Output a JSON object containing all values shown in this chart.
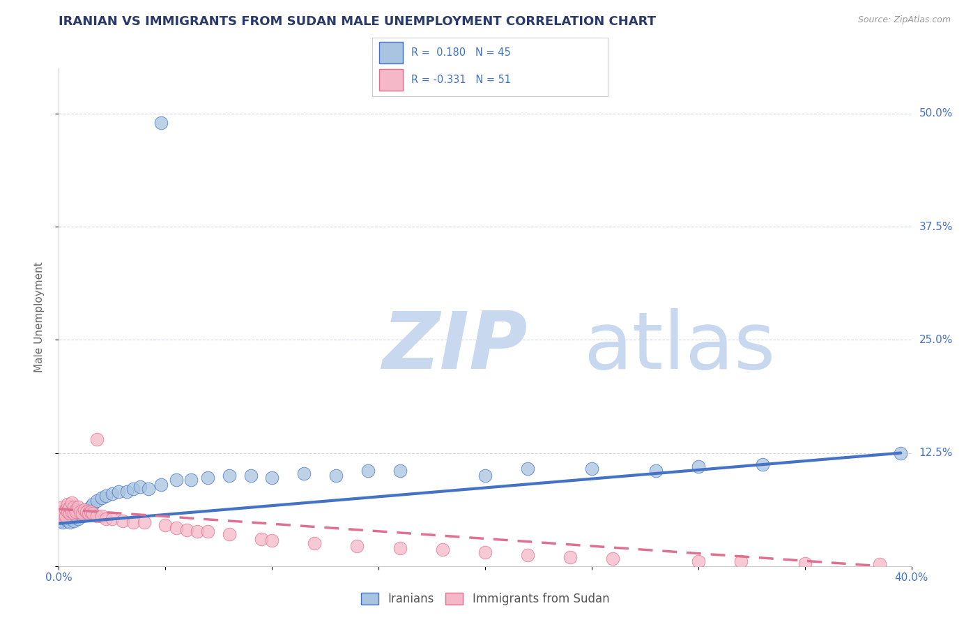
{
  "title": "IRANIAN VS IMMIGRANTS FROM SUDAN MALE UNEMPLOYMENT CORRELATION CHART",
  "source_text": "Source: ZipAtlas.com",
  "ylabel": "Male Unemployment",
  "xlim": [
    0.0,
    0.4
  ],
  "ylim": [
    0.0,
    0.55
  ],
  "yticks": [
    0.0,
    0.125,
    0.25,
    0.375,
    0.5
  ],
  "ytick_labels": [
    "",
    "12.5%",
    "25.0%",
    "37.5%",
    "50.0%"
  ],
  "xticks": [
    0.0,
    0.05,
    0.1,
    0.15,
    0.2,
    0.25,
    0.3,
    0.35,
    0.4
  ],
  "xtick_labels": [
    "0.0%",
    "",
    "",
    "",
    "",
    "",
    "",
    "",
    "40.0%"
  ],
  "color_iranian": "#a8c4e0",
  "color_sudan": "#f4b8c8",
  "color_trend_iranian": "#4472c4",
  "color_trend_sudan": "#e07090",
  "watermark_zip": "ZIP",
  "watermark_atlas": "atlas",
  "watermark_color_zip": "#c8d8ee",
  "watermark_color_atlas": "#c8d8ee",
  "iranians_x": [
    0.001,
    0.002,
    0.003,
    0.003,
    0.004,
    0.004,
    0.005,
    0.005,
    0.006,
    0.007,
    0.008,
    0.009,
    0.01,
    0.011,
    0.012,
    0.013,
    0.015,
    0.016,
    0.018,
    0.02,
    0.022,
    0.025,
    0.028,
    0.032,
    0.035,
    0.038,
    0.042,
    0.048,
    0.055,
    0.062,
    0.07,
    0.08,
    0.09,
    0.1,
    0.115,
    0.13,
    0.145,
    0.16,
    0.2,
    0.22,
    0.25,
    0.28,
    0.3,
    0.33,
    0.395
  ],
  "iranians_y": [
    0.05,
    0.048,
    0.052,
    0.055,
    0.05,
    0.058,
    0.052,
    0.048,
    0.055,
    0.05,
    0.06,
    0.052,
    0.058,
    0.055,
    0.06,
    0.062,
    0.065,
    0.068,
    0.072,
    0.075,
    0.078,
    0.08,
    0.082,
    0.082,
    0.085,
    0.088,
    0.085,
    0.09,
    0.095,
    0.095,
    0.098,
    0.1,
    0.1,
    0.098,
    0.102,
    0.1,
    0.105,
    0.105,
    0.1,
    0.108,
    0.108,
    0.105,
    0.11,
    0.112,
    0.125
  ],
  "iranians_outlier_x": [
    0.048
  ],
  "iranians_outlier_y": [
    0.49
  ],
  "sudan_x": [
    0.001,
    0.001,
    0.002,
    0.002,
    0.003,
    0.003,
    0.004,
    0.004,
    0.005,
    0.005,
    0.006,
    0.006,
    0.007,
    0.007,
    0.008,
    0.008,
    0.009,
    0.01,
    0.011,
    0.012,
    0.013,
    0.014,
    0.015,
    0.016,
    0.018,
    0.02,
    0.022,
    0.025,
    0.03,
    0.035,
    0.04,
    0.05,
    0.055,
    0.06,
    0.065,
    0.07,
    0.08,
    0.095,
    0.1,
    0.12,
    0.14,
    0.16,
    0.18,
    0.2,
    0.22,
    0.24,
    0.26,
    0.3,
    0.32,
    0.35,
    0.385
  ],
  "sudan_y": [
    0.06,
    0.055,
    0.065,
    0.058,
    0.062,
    0.055,
    0.06,
    0.068,
    0.058,
    0.065,
    0.06,
    0.07,
    0.058,
    0.065,
    0.062,
    0.06,
    0.065,
    0.06,
    0.058,
    0.062,
    0.06,
    0.058,
    0.06,
    0.058,
    0.055,
    0.055,
    0.052,
    0.052,
    0.05,
    0.048,
    0.048,
    0.045,
    0.042,
    0.04,
    0.038,
    0.038,
    0.035,
    0.03,
    0.028,
    0.025,
    0.022,
    0.02,
    0.018,
    0.015,
    0.012,
    0.01,
    0.008,
    0.005,
    0.005,
    0.003,
    0.002
  ],
  "sudan_outlier_x": [
    0.018
  ],
  "sudan_outlier_y": [
    0.14
  ],
  "trend_iran_x0": 0.0,
  "trend_iran_x1": 0.395,
  "trend_iran_y0": 0.047,
  "trend_iran_y1": 0.125,
  "trend_sudan_x0": 0.0,
  "trend_sudan_x1": 0.385,
  "trend_sudan_y0": 0.063,
  "trend_sudan_y1": 0.0,
  "grid_color": "#d0d8e8",
  "axis_color": "#cccccc",
  "tick_color": "#4472c4",
  "background_color": "#ffffff"
}
